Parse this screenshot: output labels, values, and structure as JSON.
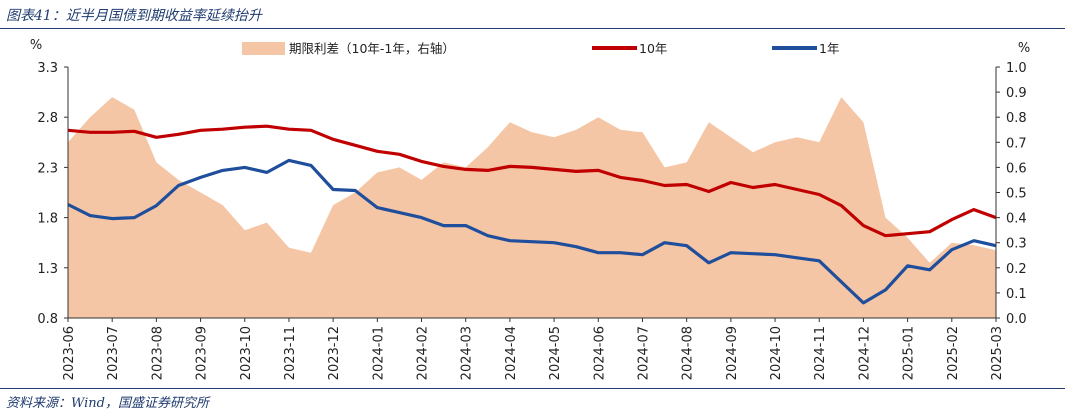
{
  "figure_title": "图表41：近半月国债到期收益率延续抬升",
  "source": "资料来源：Wind，国盛证券研究所",
  "colors": {
    "spread": "#f5c6a5",
    "y10": "#c00000",
    "y1": "#1f4e9c",
    "heading": "#1f3b6e"
  },
  "chart_data": {
    "type": "line",
    "title": "近半月国债到期收益率延续抬升",
    "left_axis": {
      "label": "%",
      "ylim": [
        0.8,
        3.3
      ],
      "ticks": [
        "3.3",
        "2.8",
        "2.3",
        "1.8",
        "1.3",
        "0.8"
      ]
    },
    "right_axis": {
      "label": "%",
      "ylim": [
        0.0,
        1.0
      ],
      "ticks": [
        "1.0",
        "0.9",
        "0.8",
        "0.7",
        "0.6",
        "0.5",
        "0.4",
        "0.3",
        "0.2",
        "0.1",
        "0.0"
      ]
    },
    "x_ticks": [
      "2023-06",
      "2023-07",
      "2023-08",
      "2023-09",
      "2023-10",
      "2023-11",
      "2023-12",
      "2024-01",
      "2024-02",
      "2024-03",
      "2024-04",
      "2024-05",
      "2024-06",
      "2024-07",
      "2024-08",
      "2024-09",
      "2024-10",
      "2024-11",
      "2024-12",
      "2025-01",
      "2025-02",
      "2025-03"
    ],
    "legend": [
      "期限利差（10年-1年，右轴）",
      "10年",
      "1年"
    ],
    "series": [
      {
        "name": "10年",
        "axis": "left",
        "x": [
          0,
          0.5,
          1,
          1.5,
          2,
          2.5,
          3,
          3.5,
          4,
          4.5,
          5,
          5.5,
          6,
          6.5,
          7,
          7.5,
          8,
          8.5,
          9,
          9.5,
          10,
          10.5,
          11,
          11.5,
          12,
          12.5,
          13,
          13.5,
          14,
          14.5,
          15,
          15.5,
          16,
          16.5,
          17,
          17.5,
          18,
          18.5,
          19,
          19.5,
          20,
          20.5,
          21
        ],
        "values": [
          2.67,
          2.65,
          2.65,
          2.66,
          2.6,
          2.63,
          2.67,
          2.68,
          2.7,
          2.71,
          2.68,
          2.67,
          2.58,
          2.52,
          2.46,
          2.43,
          2.36,
          2.31,
          2.28,
          2.27,
          2.31,
          2.3,
          2.28,
          2.26,
          2.27,
          2.2,
          2.17,
          2.12,
          2.13,
          2.06,
          2.15,
          2.1,
          2.13,
          2.08,
          2.03,
          1.92,
          1.72,
          1.62,
          1.64,
          1.66,
          1.78,
          1.88,
          1.8
        ]
      },
      {
        "name": "1年",
        "axis": "left",
        "x": [
          0,
          0.5,
          1,
          1.5,
          2,
          2.5,
          3,
          3.5,
          4,
          4.5,
          5,
          5.5,
          6,
          6.5,
          7,
          7.5,
          8,
          8.5,
          9,
          9.5,
          10,
          10.5,
          11,
          11.5,
          12,
          12.5,
          13,
          13.5,
          14,
          14.5,
          15,
          15.5,
          16,
          16.5,
          17,
          17.5,
          18,
          18.5,
          19,
          19.5,
          20,
          20.5,
          21
        ],
        "values": [
          1.93,
          1.82,
          1.79,
          1.8,
          1.92,
          2.12,
          2.2,
          2.27,
          2.3,
          2.25,
          2.37,
          2.32,
          2.08,
          2.07,
          1.9,
          1.85,
          1.8,
          1.72,
          1.72,
          1.62,
          1.57,
          1.56,
          1.55,
          1.51,
          1.45,
          1.45,
          1.43,
          1.55,
          1.52,
          1.35,
          1.45,
          1.44,
          1.43,
          1.4,
          1.37,
          1.16,
          0.95,
          1.08,
          1.32,
          1.28,
          1.48,
          1.57,
          1.52
        ]
      },
      {
        "name": "期限利差（10年-1年，右轴）",
        "axis": "right",
        "style": "area",
        "x": [
          0,
          0.5,
          1,
          1.5,
          2,
          2.5,
          3,
          3.5,
          4,
          4.5,
          5,
          5.5,
          6,
          6.5,
          7,
          7.5,
          8,
          8.5,
          9,
          9.5,
          10,
          10.5,
          11,
          11.5,
          12,
          12.5,
          13,
          13.5,
          14,
          14.5,
          15,
          15.5,
          16,
          16.5,
          17,
          17.5,
          18,
          18.5,
          19,
          19.5,
          20,
          20.5,
          21
        ],
        "values": [
          0.7,
          0.8,
          0.88,
          0.83,
          0.62,
          0.55,
          0.5,
          0.45,
          0.35,
          0.38,
          0.28,
          0.26,
          0.45,
          0.5,
          0.58,
          0.6,
          0.55,
          0.62,
          0.6,
          0.68,
          0.78,
          0.74,
          0.72,
          0.75,
          0.8,
          0.75,
          0.74,
          0.6,
          0.62,
          0.78,
          0.72,
          0.66,
          0.7,
          0.72,
          0.7,
          0.88,
          0.78,
          0.4,
          0.32,
          0.22,
          0.3,
          0.29,
          0.27
        ]
      }
    ]
  }
}
